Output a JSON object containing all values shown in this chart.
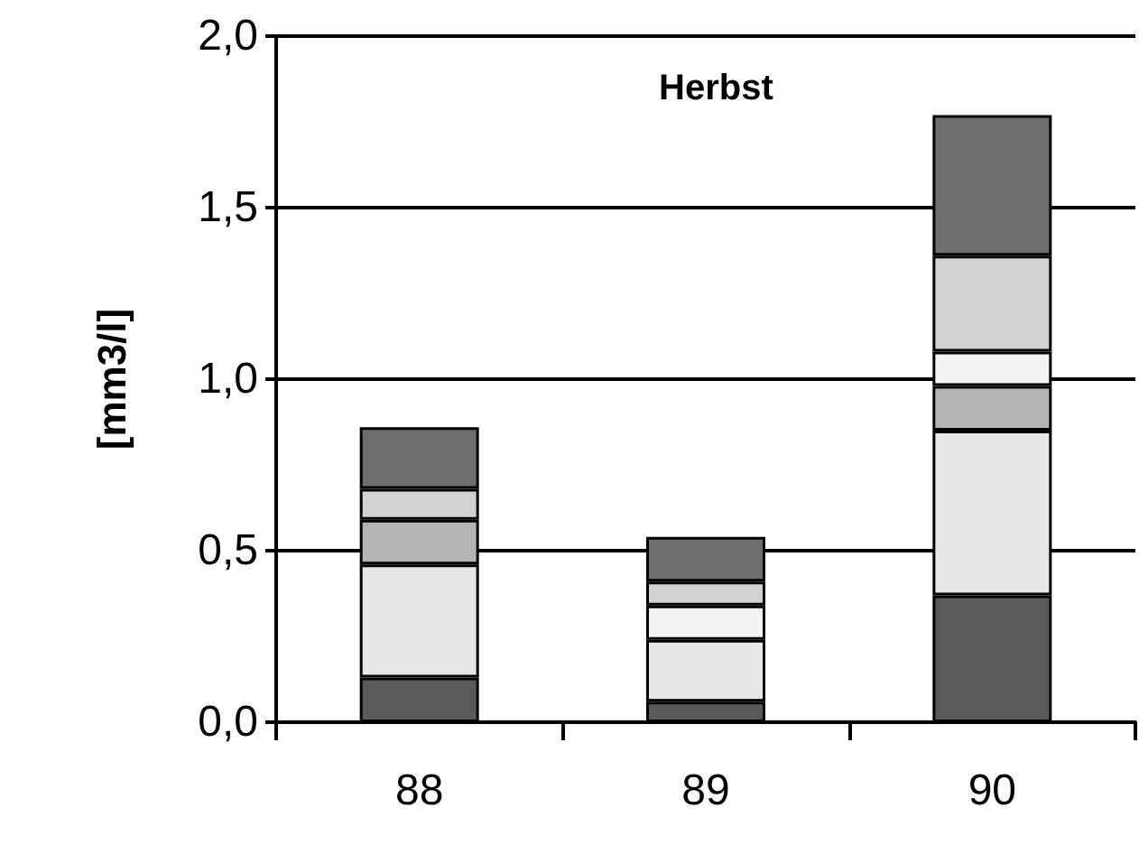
{
  "chart_data": {
    "type": "bar",
    "title": "Herbst",
    "ylabel": "[mm3/l]",
    "categories": [
      "88",
      "89",
      "90"
    ],
    "stacked": true,
    "series": [
      {
        "color": "#5a5a5a",
        "values": [
          0.13,
          0.06,
          0.37
        ]
      },
      {
        "color": "#e6e6e6",
        "values": [
          0.33,
          0.18,
          0.48
        ]
      },
      {
        "color": "#b4b4b4",
        "values": [
          0.13,
          null,
          0.13
        ]
      },
      {
        "color": "#f4f4f4",
        "values": [
          null,
          0.1,
          0.1
        ]
      },
      {
        "color": "#d2d2d2",
        "values": [
          0.09,
          0.07,
          0.28
        ]
      },
      {
        "color": "#6e6e6e",
        "values": [
          0.18,
          0.13,
          0.41
        ]
      }
    ],
    "ylim": [
      0,
      2
    ],
    "yticks": [
      {
        "value": 0,
        "label": "0,0"
      },
      {
        "value": 0.5,
        "label": "0,5"
      },
      {
        "value": 1,
        "label": "1,0"
      },
      {
        "value": 1.5,
        "label": "1,5"
      },
      {
        "value": 2,
        "label": "2,0"
      }
    ],
    "grid": "y"
  }
}
